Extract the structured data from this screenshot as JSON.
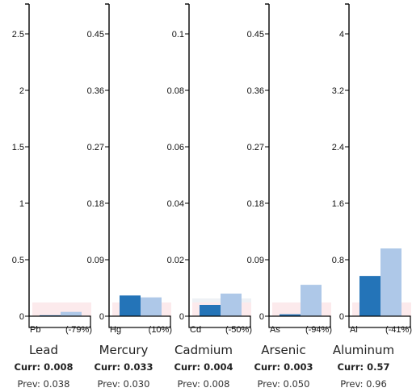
{
  "chart_data": {
    "type": "bar",
    "colors": {
      "current": "#2474b8",
      "previous": "#aec8e8",
      "band_low": "#fbe1e4",
      "band_mid": "#eef1f5"
    },
    "panels": [
      {
        "name": "Lead",
        "symbol": "Pb",
        "change": "(-79%)",
        "current": 0.008,
        "previous": 0.038,
        "current_label": "Curr: 0.008",
        "previous_label": "Prev: 0.038",
        "ylim": [
          0,
          2.5
        ],
        "ticks": [
          "0",
          "0.5",
          "1",
          "1.5",
          "2",
          "2.5"
        ]
      },
      {
        "name": "Mercury",
        "symbol": "Hg",
        "change": "(10%)",
        "current": 0.033,
        "previous": 0.03,
        "current_label": "Curr: 0.033",
        "previous_label": "Prev: 0.030",
        "ylim": [
          0,
          0.45
        ],
        "ticks": [
          "0",
          "0.09",
          "0.18",
          "0.27",
          "0.36",
          "0.45"
        ]
      },
      {
        "name": "Cadmium",
        "symbol": "Cd",
        "change": "(-50%)",
        "current": 0.004,
        "previous": 0.008,
        "current_label": "Curr: 0.004",
        "previous_label": "Prev: 0.008",
        "ylim": [
          0,
          0.1
        ],
        "ticks": [
          "0",
          "0.02",
          "0.04",
          "0.06",
          "0.08",
          "0.1"
        ]
      },
      {
        "name": "Arsenic",
        "symbol": "As",
        "change": "(-94%)",
        "current": 0.003,
        "previous": 0.05,
        "current_label": "Curr: 0.003",
        "previous_label": "Prev: 0.050",
        "ylim": [
          0,
          0.45
        ],
        "ticks": [
          "0",
          "0.09",
          "0.18",
          "0.27",
          "0.36",
          "0.45"
        ]
      },
      {
        "name": "Aluminum",
        "symbol": "Al",
        "change": "(-41%)",
        "current": 0.57,
        "previous": 0.96,
        "current_label": "Curr: 0.57",
        "previous_label": "Prev: 0.96",
        "ylim": [
          0,
          4
        ],
        "ticks": [
          "0",
          "0.8",
          "1.6",
          "2.4",
          "3.2",
          "4"
        ]
      }
    ]
  }
}
